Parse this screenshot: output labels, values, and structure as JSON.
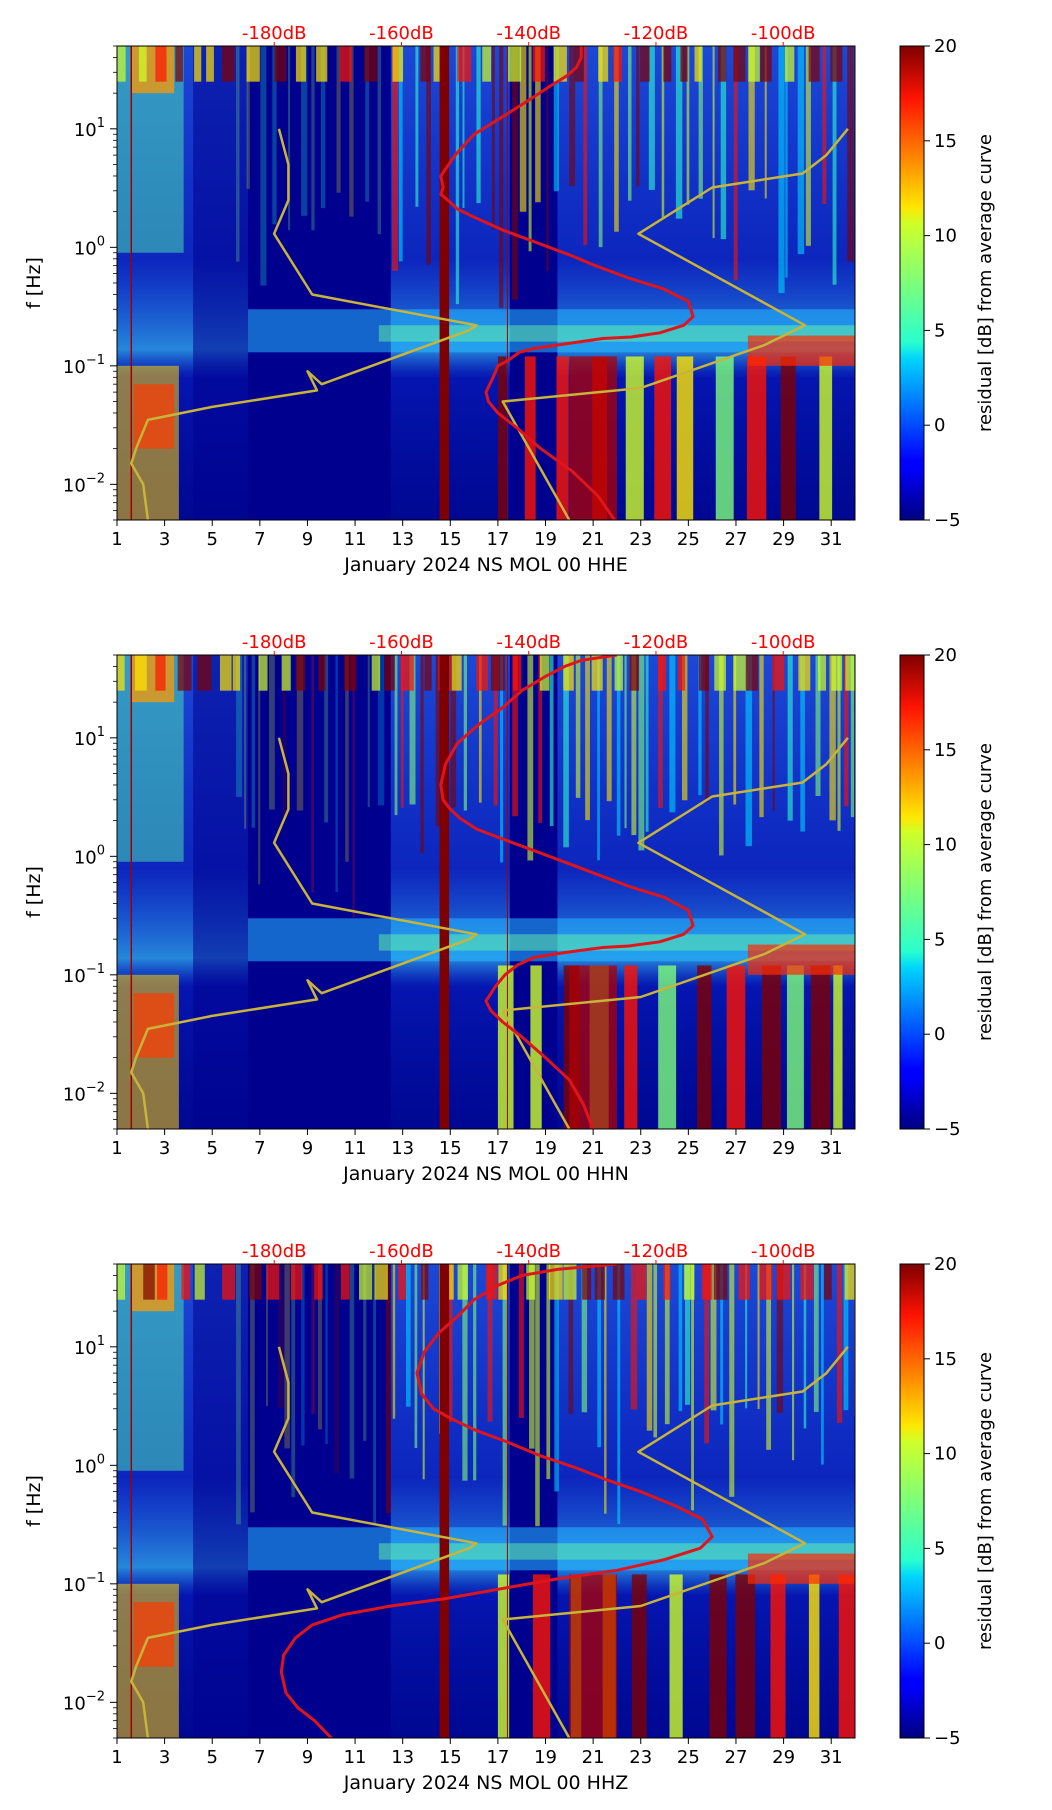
{
  "chart_data": [
    {
      "type": "heatmap",
      "channel": "HHE",
      "xlabel": "January 2024 NS MOL 00 HHE",
      "ylabel": "f [Hz]",
      "xlim": [
        1,
        32
      ],
      "ylim": [
        0.005,
        50
      ],
      "x_ticks": [
        "1",
        "3",
        "5",
        "7",
        "9",
        "11",
        "13",
        "15",
        "17",
        "19",
        "21",
        "23",
        "25",
        "27",
        "29",
        "31"
      ],
      "y_ticks": [
        {
          "label": "10",
          "exp": "1",
          "value": 10
        },
        {
          "label": "10",
          "exp": "0",
          "value": 1
        },
        {
          "label": "10",
          "exp": "−1",
          "value": 0.1
        },
        {
          "label": "10",
          "exp": "−2",
          "value": 0.01
        }
      ],
      "top_axis_labels": [
        "-180dB",
        "-160dB",
        "-140dB",
        "-120dB",
        "-100dB"
      ],
      "top_axis_color": "#ff0000",
      "colorbar": {
        "label": "residual [dB] from average curve",
        "ticks": [
          "20",
          "15",
          "10",
          "5",
          "0",
          "−5"
        ],
        "range": [
          -5,
          20
        ]
      },
      "series": [
        {
          "name": "yellow reference curve",
          "color": "#c8b43a",
          "x": [
            7.8,
            8.2,
            8.2,
            7.6,
            9.2,
            16.1,
            15.8,
            9.6,
            9.0,
            9.4,
            5.0,
            2.3,
            1.8,
            1.6,
            2.1,
            2.3
          ],
          "y": [
            10,
            5,
            2.5,
            1.3,
            0.4,
            0.22,
            0.2,
            0.07,
            0.09,
            0.062,
            0.045,
            0.035,
            0.02,
            0.015,
            0.01,
            0.005
          ]
        },
        {
          "name": "yellow reference curve right",
          "color": "#c8b43a",
          "x": [
            31.7,
            30.8,
            29.8,
            26.0,
            22.9,
            29.9,
            28.2,
            23.0,
            17.2,
            20.0
          ],
          "y": [
            10,
            6,
            4.2,
            3.2,
            1.3,
            0.22,
            0.15,
            0.065,
            0.05,
            0.005
          ]
        },
        {
          "name": "red average curve",
          "color": "#e0151b",
          "x": [
            20.5,
            20.5,
            20.3,
            19.9,
            19.2,
            18.4,
            17.3,
            16.0,
            15.2,
            14.6,
            14.7,
            14.6,
            14.9,
            15.3,
            16.0,
            17.2,
            18.6,
            20.1,
            21.1,
            22.5,
            23.9,
            25.0,
            25.2,
            24.8,
            23.8,
            22.6,
            21.4,
            20.5,
            19.5,
            18.5,
            17.9,
            17.4,
            17.0,
            16.8,
            16.5,
            16.6,
            17.0,
            17.8,
            18.8,
            20.1,
            21.2,
            21.9
          ],
          "y": [
            50,
            40,
            33,
            28,
            23,
            18,
            13,
            9,
            6,
            4,
            3.2,
            2.8,
            2.5,
            2.1,
            1.8,
            1.4,
            1.1,
            0.85,
            0.7,
            0.55,
            0.45,
            0.35,
            0.26,
            0.22,
            0.19,
            0.175,
            0.17,
            0.16,
            0.15,
            0.14,
            0.13,
            0.11,
            0.1,
            0.08,
            0.06,
            0.05,
            0.04,
            0.03,
            0.02,
            0.013,
            0.008,
            0.005
          ]
        }
      ]
    },
    {
      "type": "heatmap",
      "channel": "HHN",
      "xlabel": "January 2024 NS MOL 00 HHN",
      "ylabel": "f [Hz]",
      "xlim": [
        1,
        32
      ],
      "ylim": [
        0.005,
        50
      ],
      "x_ticks": [
        "1",
        "3",
        "5",
        "7",
        "9",
        "11",
        "13",
        "15",
        "17",
        "19",
        "21",
        "23",
        "25",
        "27",
        "29",
        "31"
      ],
      "y_ticks": [
        {
          "label": "10",
          "exp": "1",
          "value": 10
        },
        {
          "label": "10",
          "exp": "0",
          "value": 1
        },
        {
          "label": "10",
          "exp": "−1",
          "value": 0.1
        },
        {
          "label": "10",
          "exp": "−2",
          "value": 0.01
        }
      ],
      "top_axis_labels": [
        "-180dB",
        "-160dB",
        "-140dB",
        "-120dB",
        "-100dB"
      ],
      "top_axis_color": "#ff0000",
      "colorbar": {
        "label": "residual [dB] from average curve",
        "ticks": [
          "20",
          "15",
          "10",
          "5",
          "0",
          "−5"
        ],
        "range": [
          -5,
          20
        ]
      },
      "series": [
        {
          "name": "yellow reference curve",
          "color": "#c8b43a",
          "x": [
            7.8,
            8.2,
            8.2,
            7.6,
            9.2,
            16.1,
            15.8,
            9.6,
            9.0,
            9.4,
            5.0,
            2.3,
            1.8,
            1.6,
            2.1,
            2.3
          ],
          "y": [
            10,
            5,
            2.5,
            1.3,
            0.4,
            0.22,
            0.2,
            0.07,
            0.09,
            0.062,
            0.045,
            0.035,
            0.02,
            0.015,
            0.01,
            0.005
          ]
        },
        {
          "name": "yellow reference curve right",
          "color": "#c8b43a",
          "x": [
            31.7,
            30.8,
            29.8,
            26.0,
            22.9,
            29.9,
            28.2,
            23.0,
            17.2,
            20.0
          ],
          "y": [
            10,
            6,
            4.2,
            3.2,
            1.3,
            0.22,
            0.15,
            0.065,
            0.05,
            0.005
          ]
        },
        {
          "name": "red average curve",
          "color": "#e0151b",
          "x": [
            22.0,
            20.5,
            19.8,
            19.0,
            18.0,
            17.2,
            16.2,
            15.3,
            14.8,
            14.6,
            14.7,
            15.0,
            15.4,
            16.1,
            17.2,
            18.6,
            20.1,
            21.2,
            22.6,
            24.0,
            25.0,
            25.2,
            24.8,
            23.8,
            22.5,
            21.4,
            20.4,
            19.4,
            18.5,
            17.8,
            17.3,
            16.9,
            16.5,
            16.7,
            17.2,
            18.0,
            19.0,
            20.0,
            20.6,
            21.0
          ],
          "y": [
            50,
            45,
            40,
            33,
            25,
            18,
            13,
            9,
            6,
            4,
            3,
            2.5,
            2.1,
            1.7,
            1.4,
            1.1,
            0.85,
            0.7,
            0.55,
            0.45,
            0.35,
            0.26,
            0.22,
            0.19,
            0.175,
            0.17,
            0.16,
            0.15,
            0.14,
            0.12,
            0.1,
            0.08,
            0.06,
            0.05,
            0.04,
            0.03,
            0.02,
            0.013,
            0.008,
            0.005
          ]
        }
      ]
    },
    {
      "type": "heatmap",
      "channel": "HHZ",
      "xlabel": "January 2024 NS MOL 00 HHZ",
      "ylabel": "f [Hz]",
      "xlim": [
        1,
        32
      ],
      "ylim": [
        0.005,
        50
      ],
      "x_ticks": [
        "1",
        "3",
        "5",
        "7",
        "9",
        "11",
        "13",
        "15",
        "17",
        "19",
        "21",
        "23",
        "25",
        "27",
        "29",
        "31"
      ],
      "y_ticks": [
        {
          "label": "10",
          "exp": "1",
          "value": 10
        },
        {
          "label": "10",
          "exp": "0",
          "value": 1
        },
        {
          "label": "10",
          "exp": "−1",
          "value": 0.1
        },
        {
          "label": "10",
          "exp": "−2",
          "value": 0.01
        }
      ],
      "top_axis_labels": [
        "-180dB",
        "-160dB",
        "-140dB",
        "-120dB",
        "-100dB"
      ],
      "top_axis_color": "#ff0000",
      "colorbar": {
        "label": "residual [dB] from average curve",
        "ticks": [
          "20",
          "15",
          "10",
          "5",
          "0",
          "−5"
        ],
        "range": [
          -5,
          20
        ]
      },
      "series": [
        {
          "name": "yellow reference curve",
          "color": "#c8b43a",
          "x": [
            7.8,
            8.2,
            8.2,
            7.6,
            9.2,
            16.1,
            15.8,
            9.6,
            9.0,
            9.4,
            5.0,
            2.3,
            1.8,
            1.6,
            2.1,
            2.3
          ],
          "y": [
            10,
            5,
            2.5,
            1.3,
            0.4,
            0.22,
            0.2,
            0.07,
            0.09,
            0.062,
            0.045,
            0.035,
            0.02,
            0.015,
            0.01,
            0.005
          ]
        },
        {
          "name": "yellow reference curve right",
          "color": "#c8b43a",
          "x": [
            31.7,
            30.8,
            29.8,
            26.0,
            22.9,
            29.9,
            28.2,
            23.0,
            17.2,
            20.0
          ],
          "y": [
            10,
            6,
            4.2,
            3.2,
            1.3,
            0.22,
            0.15,
            0.065,
            0.05,
            0.005
          ]
        },
        {
          "name": "red average curve",
          "color": "#e0151b",
          "x": [
            22.0,
            19.5,
            18.0,
            17.0,
            16.0,
            15.3,
            14.5,
            13.9,
            13.6,
            13.8,
            14.3,
            15.0,
            16.0,
            17.3,
            18.8,
            20.3,
            21.6,
            23.0,
            24.5,
            25.6,
            26.0,
            25.5,
            24.0,
            22.0,
            19.5,
            17.0,
            14.8,
            12.5,
            10.5,
            9.2,
            8.5,
            8.0,
            7.9,
            8.1,
            8.6,
            9.3,
            10.0
          ],
          "y": [
            50,
            45,
            40,
            33,
            25,
            18,
            13,
            9,
            6,
            4,
            3,
            2.5,
            2.0,
            1.6,
            1.2,
            0.95,
            0.75,
            0.6,
            0.45,
            0.35,
            0.25,
            0.2,
            0.16,
            0.13,
            0.11,
            0.09,
            0.075,
            0.065,
            0.055,
            0.045,
            0.035,
            0.025,
            0.018,
            0.012,
            0.009,
            0.007,
            0.005
          ]
        }
      ]
    }
  ]
}
